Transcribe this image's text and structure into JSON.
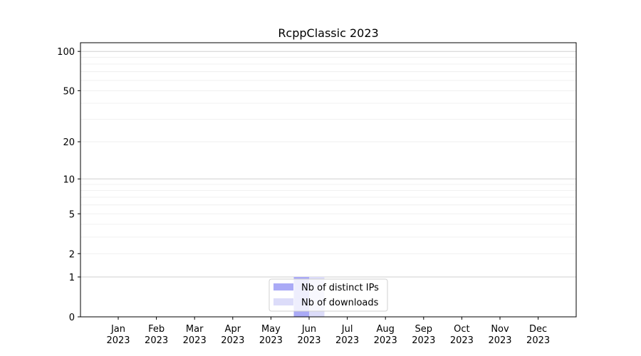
{
  "chart_data": {
    "type": "bar",
    "title": "RcppClassic 2023",
    "xlabel": "",
    "ylabel": "",
    "yscale": "log(1+y)",
    "ylim": [
      0,
      110
    ],
    "grid": true,
    "legend_position": "bottom-center",
    "categories": [
      "Jan\n2023",
      "Feb\n2023",
      "Mar\n2023",
      "Apr\n2023",
      "May\n2023",
      "Jun\n2023",
      "Jul\n2023",
      "Aug\n2023",
      "Sep\n2023",
      "Oct\n2023",
      "Nov\n2023",
      "Dec\n2023"
    ],
    "x_tick_labels": [
      [
        "Jan",
        "2023"
      ],
      [
        "Feb",
        "2023"
      ],
      [
        "Mar",
        "2023"
      ],
      [
        "Apr",
        "2023"
      ],
      [
        "May",
        "2023"
      ],
      [
        "Jun",
        "2023"
      ],
      [
        "Jul",
        "2023"
      ],
      [
        "Aug",
        "2023"
      ],
      [
        "Sep",
        "2023"
      ],
      [
        "Oct",
        "2023"
      ],
      [
        "Nov",
        "2023"
      ],
      [
        "Dec",
        "2023"
      ]
    ],
    "y_ticks": [
      0,
      1,
      2,
      5,
      10,
      20,
      50,
      100
    ],
    "y_tick_labels": [
      "0",
      "1",
      "2",
      "5",
      "10",
      "20",
      "50",
      "100"
    ],
    "series": [
      {
        "name": "Nb of distinct IPs",
        "color": "#aaaaf6",
        "values": [
          0,
          0,
          0,
          0,
          0,
          1,
          0,
          0,
          0,
          0,
          0,
          0
        ]
      },
      {
        "name": "Nb of downloads",
        "color": "#dcdcf9",
        "values": [
          0,
          0,
          0,
          0,
          0,
          1,
          0,
          0,
          0,
          0,
          0,
          0
        ]
      }
    ]
  }
}
